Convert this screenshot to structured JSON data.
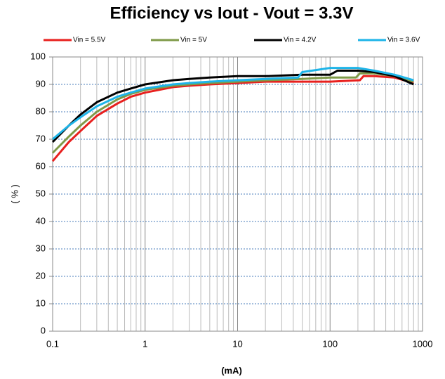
{
  "chart_data": {
    "type": "line",
    "title": "Efficiency vs Iout - Vout = 3.3V",
    "x_label": "(mA)",
    "y_label": "( % )",
    "xlim": [
      0.1,
      1000
    ],
    "xticks": [
      0.1,
      1,
      10,
      100,
      1000
    ],
    "xscale": "log",
    "ylim": [
      0,
      100
    ],
    "yticks": [
      0,
      10,
      20,
      30,
      40,
      50,
      60,
      70,
      80,
      90,
      100
    ],
    "grid": true,
    "legend": "top",
    "series": [
      {
        "name": "Vin = 5.5V",
        "color": "#e8201e",
        "x": [
          0.1,
          0.15,
          0.2,
          0.3,
          0.5,
          0.7,
          1,
          2,
          3,
          5,
          10,
          20,
          50,
          100,
          210,
          230,
          300,
          500,
          800
        ],
        "values": [
          62,
          69,
          73,
          78.5,
          83,
          85.5,
          87,
          89,
          89.5,
          90,
          90.5,
          91,
          91,
          91,
          91.5,
          93,
          93,
          92.5,
          90.5
        ]
      },
      {
        "name": "Vin = 5V",
        "color": "#7f9a48",
        "x": [
          0.1,
          0.15,
          0.2,
          0.3,
          0.5,
          0.7,
          1,
          2,
          3,
          5,
          10,
          20,
          50,
          100,
          190,
          210,
          300,
          500,
          800
        ],
        "values": [
          65,
          71,
          75,
          80,
          84.5,
          86.5,
          88,
          89.5,
          90,
          90.5,
          91,
          91.5,
          92,
          92.5,
          92.5,
          94,
          94,
          93,
          91
        ]
      },
      {
        "name": "Vin = 4.2V",
        "color": "#000000",
        "x": [
          0.1,
          0.15,
          0.2,
          0.3,
          0.5,
          0.7,
          1,
          2,
          3,
          5,
          10,
          20,
          50,
          100,
          120,
          200,
          300,
          500,
          800
        ],
        "values": [
          69,
          75,
          79,
          83.5,
          87,
          88.5,
          90,
          91.5,
          92,
          92.5,
          93,
          93,
          93.5,
          93.5,
          95,
          95,
          94.5,
          93,
          90
        ]
      },
      {
        "name": "Vin = 3.6V",
        "color": "#1eb4e8",
        "x": [
          0.1,
          0.15,
          0.2,
          0.3,
          0.5,
          0.7,
          1,
          2,
          3,
          5,
          10,
          20,
          45,
          50,
          100,
          200,
          300,
          500,
          800
        ],
        "values": [
          70,
          75,
          78,
          82,
          85.5,
          87,
          88.5,
          90,
          90.5,
          91,
          91.5,
          92,
          92.5,
          94.5,
          96,
          96,
          95,
          93.5,
          91.5
        ]
      }
    ]
  }
}
